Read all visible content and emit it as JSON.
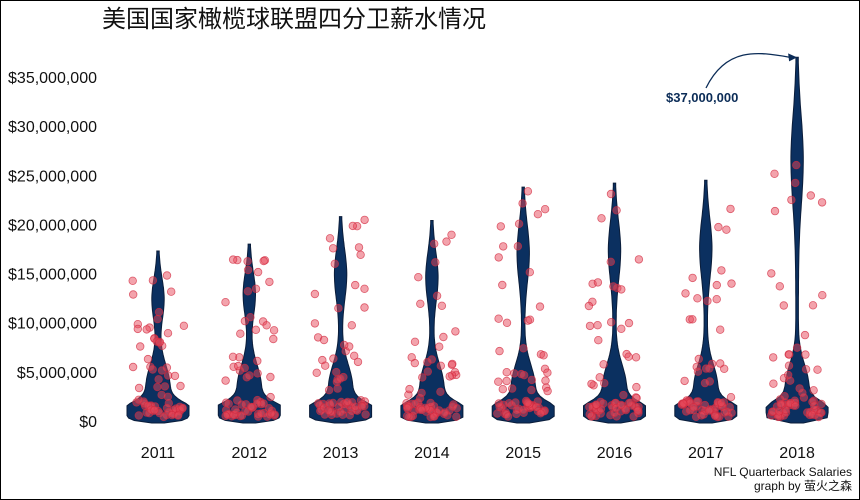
{
  "chart_data": {
    "type": "violin",
    "title": "美国国家橄榄球联盟四分卫薪水情况",
    "xlabel": "",
    "ylabel": "",
    "categories": [
      "2011",
      "2012",
      "2013",
      "2014",
      "2015",
      "2016",
      "2017",
      "2018"
    ],
    "y_ticks": [
      0,
      5000000,
      10000000,
      15000000,
      20000000,
      25000000,
      30000000,
      35000000
    ],
    "y_tick_labels": [
      "$0",
      "$5,000,000",
      "$10,000,000",
      "$15,000,000",
      "$20,000,000",
      "$25,000,000",
      "$30,000,000",
      "$35,000,000"
    ],
    "ylim": [
      -1200000,
      42000000
    ],
    "max_salary": [
      17300000,
      18000000,
      20800000,
      20400000,
      23800000,
      24200000,
      24500000,
      37000000
    ],
    "point_fill_color": "#e8475a",
    "violin_color": "#0b3060",
    "annotation": {
      "label": "$37,000,000",
      "category": "2018",
      "value": 37000000
    },
    "caption_line1": "NFL Quarterback Salaries",
    "caption_line2": "graph by 萤火之森",
    "grid": false
  }
}
